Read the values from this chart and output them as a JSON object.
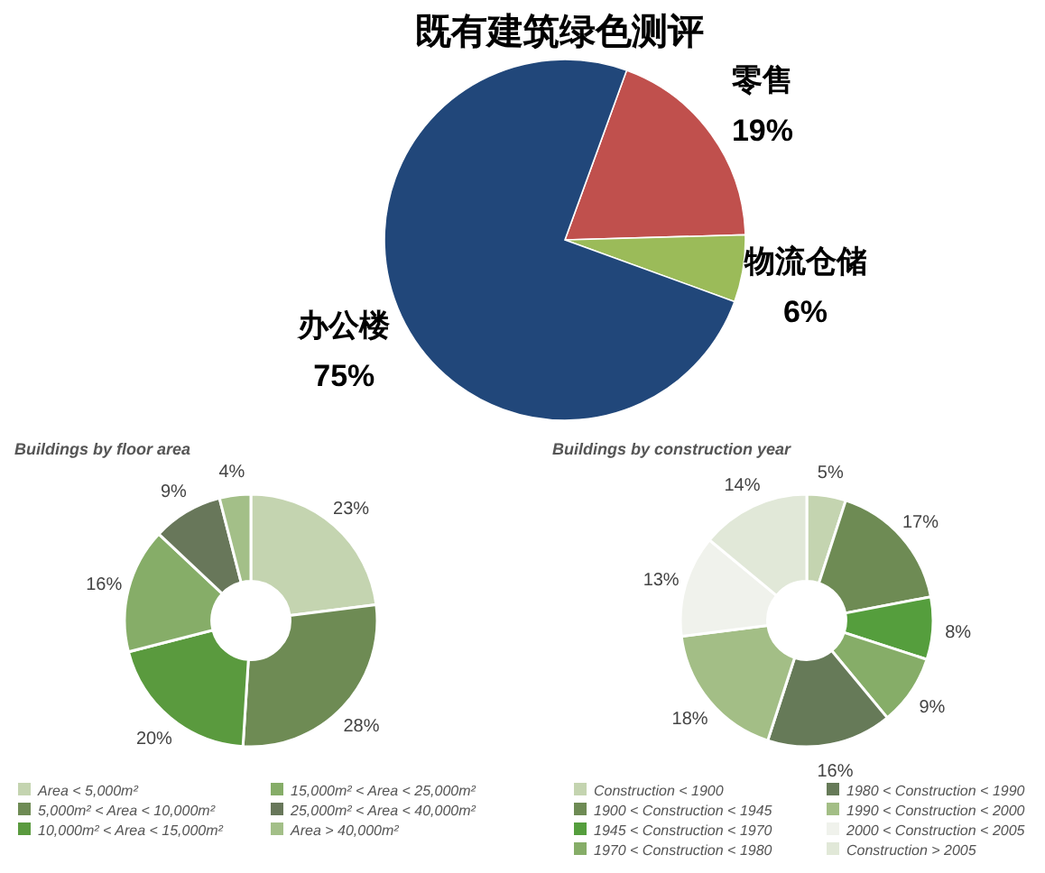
{
  "chart_data": [
    {
      "type": "pie",
      "title": "既有建筑绿色测评",
      "categories": [
        "零售",
        "物流仓储",
        "办公楼"
      ],
      "values": [
        19,
        6,
        75
      ],
      "value_labels": [
        "19%",
        "6%",
        "75%"
      ],
      "colors": [
        "#c0504d",
        "#9bbb59",
        "#21477a"
      ],
      "legend": false
    },
    {
      "type": "donut",
      "title": "Buildings by floor area",
      "categories": [
        "Area < 5,000m²",
        "5,000m² < Area < 10,000m²",
        "10,000m² < Area < 15,000m²",
        "15,000m² < Area < 25,000m²",
        "25,000m² < Area < 40,000m²",
        "Area > 40,000m²"
      ],
      "values": [
        23,
        28,
        20,
        16,
        9,
        4
      ],
      "value_labels": [
        "23%",
        "28%",
        "20%",
        "16%",
        "9%",
        "4%"
      ],
      "colors": [
        "#c4d4b0",
        "#6e8b54",
        "#5a9a3e",
        "#86ad68",
        "#68775a",
        "#a3bf88"
      ],
      "legend": "bottom"
    },
    {
      "type": "donut",
      "title": "Buildings by construction year",
      "categories": [
        "Construction < 1900",
        "1900 < Construction < 1945",
        "1945 < Construction < 1970",
        "1970 < Construction < 1980",
        "1980 < Construction < 1990",
        "1990 < Construction < 2000",
        "2000 < Construction < 2005",
        "Construction > 2005"
      ],
      "values": [
        5,
        17,
        8,
        9,
        16,
        18,
        13,
        14
      ],
      "value_labels": [
        "5%",
        "17%",
        "8%",
        "9%",
        "16%",
        "18%",
        "13%",
        "14%"
      ],
      "colors": [
        "#c4d4b0",
        "#6e8b54",
        "#559e3d",
        "#86ad68",
        "#667a58",
        "#a3be86",
        "#f0f2ec",
        "#e1e8d8"
      ],
      "legend": "bottom"
    }
  ]
}
